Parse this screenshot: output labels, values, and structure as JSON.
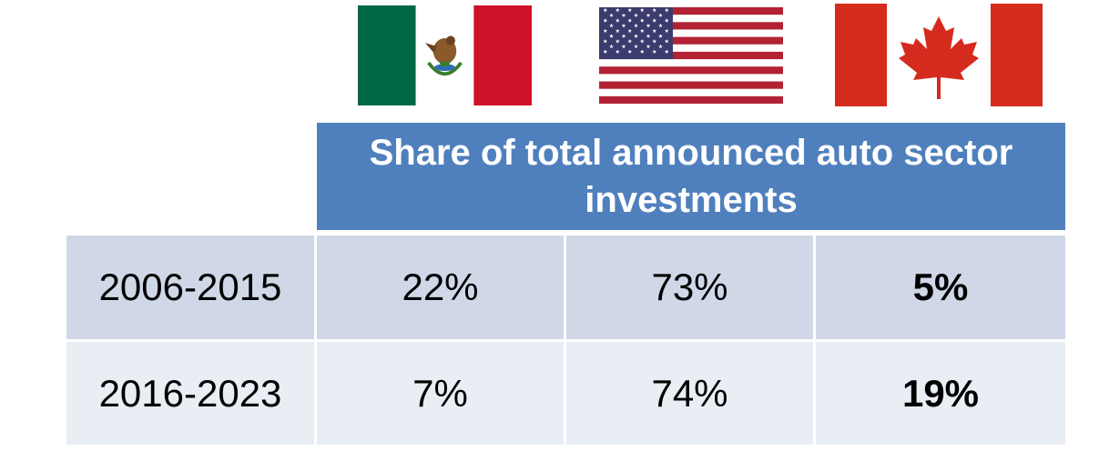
{
  "chart_data": {
    "type": "table",
    "flags": [
      {
        "country": "Mexico",
        "icon": "mexico-flag-icon"
      },
      {
        "country": "United States",
        "icon": "us-flag-icon"
      },
      {
        "country": "Canada",
        "icon": "canada-flag-icon"
      }
    ],
    "header": "Share of total announced auto sector investments",
    "rows": [
      {
        "label": "2006-2015",
        "values": [
          "22%",
          "73%",
          "5%"
        ]
      },
      {
        "label": "2016-2023",
        "values": [
          "7%",
          "74%",
          "19%"
        ]
      }
    ],
    "numeric_values_percent": [
      [
        22,
        73,
        5
      ],
      [
        7,
        74,
        19
      ]
    ],
    "emphasized_column": "Canada",
    "colors": {
      "header_bg": "#4f80bd",
      "row1_bg": "#d0d8e8",
      "row2_bg": "#e9edf4",
      "mexico_green": "#006847",
      "mexico_red": "#ce1126",
      "us_red": "#b22234",
      "us_blue": "#3c3b6e",
      "canada_red": "#d52b1e"
    }
  }
}
